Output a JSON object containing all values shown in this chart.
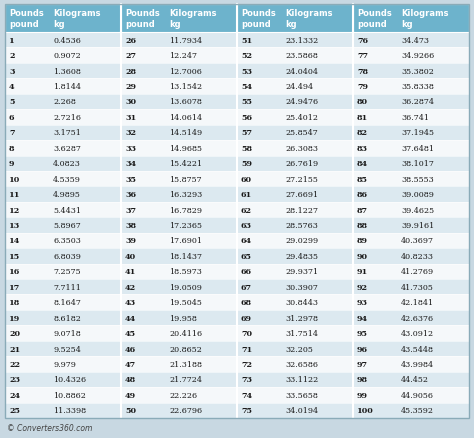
{
  "header_bg": "#6db3cc",
  "row_bg_odd": "#dce9f0",
  "row_bg_even": "#f5f8fa",
  "header_text_color": "#ffffff",
  "row_text_color": "#1a1a1a",
  "footer_text": "© Converters360.com",
  "col_headers": [
    "Pounds\npound",
    "Kilograms\nkg",
    "Pounds\npound",
    "Kilograms\nkg",
    "Pounds\npound",
    "Kilograms\nkg",
    "Pounds\npound",
    "Kilograms\nkg"
  ],
  "data": [
    [
      1,
      "0.4536",
      26,
      "11.7934",
      51,
      "23.1332",
      76,
      "34.473"
    ],
    [
      2,
      "0.9072",
      27,
      "12.247",
      52,
      "23.5868",
      77,
      "34.9266"
    ],
    [
      3,
      "1.3608",
      28,
      "12.7006",
      53,
      "24.0404",
      78,
      "35.3802"
    ],
    [
      4,
      "1.8144",
      29,
      "13.1542",
      54,
      "24.494",
      79,
      "35.8338"
    ],
    [
      5,
      "2.268",
      30,
      "13.6078",
      55,
      "24.9476",
      80,
      "36.2874"
    ],
    [
      6,
      "2.7216",
      31,
      "14.0614",
      56,
      "25.4012",
      81,
      "36.741"
    ],
    [
      7,
      "3.1751",
      32,
      "14.5149",
      57,
      "25.8547",
      82,
      "37.1945"
    ],
    [
      8,
      "3.6287",
      33,
      "14.9685",
      58,
      "26.3083",
      83,
      "37.6481"
    ],
    [
      9,
      "4.0823",
      34,
      "15.4221",
      59,
      "26.7619",
      84,
      "38.1017"
    ],
    [
      10,
      "4.5359",
      35,
      "15.8757",
      60,
      "27.2155",
      85,
      "38.5553"
    ],
    [
      11,
      "4.9895",
      36,
      "16.3293",
      61,
      "27.6691",
      86,
      "39.0089"
    ],
    [
      12,
      "5.4431",
      37,
      "16.7829",
      62,
      "28.1227",
      87,
      "39.4625"
    ],
    [
      13,
      "5.8967",
      38,
      "17.2365",
      63,
      "28.5763",
      88,
      "39.9161"
    ],
    [
      14,
      "6.3503",
      39,
      "17.6901",
      64,
      "29.0299",
      89,
      "40.3697"
    ],
    [
      15,
      "6.8039",
      40,
      "18.1437",
      65,
      "29.4835",
      90,
      "40.8233"
    ],
    [
      16,
      "7.2575",
      41,
      "18.5973",
      66,
      "29.9371",
      91,
      "41.2769"
    ],
    [
      17,
      "7.7111",
      42,
      "19.0509",
      67,
      "30.3907",
      92,
      "41.7305"
    ],
    [
      18,
      "8.1647",
      43,
      "19.5045",
      68,
      "30.8443",
      93,
      "42.1841"
    ],
    [
      19,
      "8.6182",
      44,
      "19.958",
      69,
      "31.2978",
      94,
      "42.6376"
    ],
    [
      20,
      "9.0718",
      45,
      "20.4116",
      70,
      "31.7514",
      95,
      "43.0912"
    ],
    [
      21,
      "9.5254",
      46,
      "20.8652",
      71,
      "32.205",
      96,
      "43.5448"
    ],
    [
      22,
      "9.979",
      47,
      "21.3188",
      72,
      "32.6586",
      97,
      "43.9984"
    ],
    [
      23,
      "10.4326",
      48,
      "21.7724",
      73,
      "33.1122",
      98,
      "44.452"
    ],
    [
      24,
      "10.8862",
      49,
      "22.226",
      74,
      "33.5658",
      99,
      "44.9056"
    ],
    [
      25,
      "11.3398",
      50,
      "22.6796",
      75,
      "34.0194",
      100,
      "45.3592"
    ]
  ]
}
